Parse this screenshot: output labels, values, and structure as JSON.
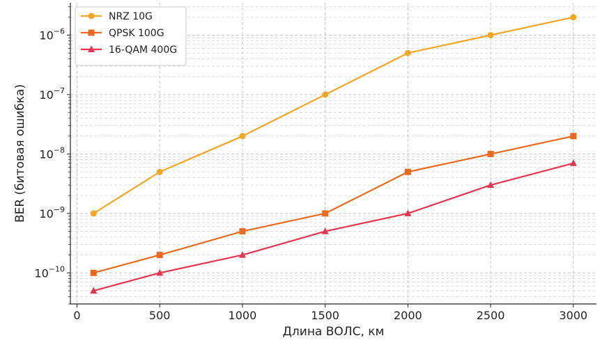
{
  "chart_data": {
    "type": "line",
    "x": [
      100,
      500,
      1000,
      1500,
      2000,
      2500,
      3000
    ],
    "series": [
      {
        "name": "NRZ 10G",
        "values": [
          1e-09,
          5e-09,
          2e-08,
          1e-07,
          5e-07,
          1e-06,
          2e-06
        ],
        "color": "#f5a623",
        "marker": "circle"
      },
      {
        "name": "QPSK 100G",
        "values": [
          1e-10,
          2e-10,
          5e-10,
          1e-09,
          5e-09,
          1e-08,
          2e-08
        ],
        "color": "#ec6a1f",
        "marker": "square"
      },
      {
        "name": "16-QAM 400G",
        "values": [
          5e-11,
          1e-10,
          2e-10,
          5e-10,
          1e-09,
          3e-09,
          7e-09
        ],
        "color": "#e8344e",
        "marker": "triangle"
      }
    ],
    "xlabel": "Длина ВОЛС, км",
    "ylabel": "BER (битовая ошибка)",
    "xlim": [
      -40,
      3140
    ],
    "ylim": [
      3e-11,
      3.5e-06
    ],
    "yscale": "log",
    "xticks": [
      0,
      500,
      1000,
      1500,
      2000,
      2500,
      3000
    ],
    "xtick_labels": [
      "0",
      "500",
      "1000",
      "1500",
      "2000",
      "2500",
      "3000"
    ],
    "yticks": [
      {
        "mant": "10",
        "exp": "−10",
        "value": 1e-10
      },
      {
        "mant": "10",
        "exp": "−9",
        "value": 1e-09
      },
      {
        "mant": "10",
        "exp": "−8",
        "value": 1e-08
      },
      {
        "mant": "10",
        "exp": "−7",
        "value": 1e-07
      },
      {
        "mant": "10",
        "exp": "−6",
        "value": 1e-06
      }
    ],
    "grid": true,
    "legend_position": "top-left"
  }
}
